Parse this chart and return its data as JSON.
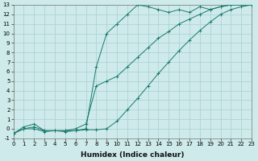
{
  "xlabel": "Humidex (Indice chaleur)",
  "bg_color": "#ceeaea",
  "grid_color": "#aacfcf",
  "line_color": "#1a7a6e",
  "xlim": [
    0,
    23
  ],
  "ylim": [
    -1,
    13
  ],
  "xticks": [
    0,
    1,
    2,
    3,
    4,
    5,
    6,
    7,
    8,
    9,
    10,
    11,
    12,
    13,
    14,
    15,
    16,
    17,
    18,
    19,
    20,
    21,
    22,
    23
  ],
  "yticks": [
    -1,
    0,
    1,
    2,
    3,
    4,
    5,
    6,
    7,
    8,
    9,
    10,
    11,
    12,
    13
  ],
  "line1_x": [
    0,
    1,
    2,
    3,
    4,
    5,
    6,
    7,
    8,
    9,
    10,
    11,
    12,
    13,
    14,
    15,
    16,
    17,
    18,
    19,
    20,
    21,
    22,
    23
  ],
  "line1_y": [
    -0.5,
    0.2,
    0.5,
    -0.2,
    -0.2,
    -0.3,
    -0.2,
    0.0,
    6.5,
    10.0,
    11.0,
    12.0,
    13.0,
    12.8,
    12.5,
    12.2,
    12.5,
    12.2,
    12.8,
    12.5,
    12.8,
    13.0,
    13.0,
    13.0
  ],
  "line2_x": [
    0,
    1,
    2,
    3,
    4,
    5,
    6,
    7,
    8,
    9,
    10,
    11,
    12,
    13,
    14,
    15,
    16,
    17,
    18,
    19,
    20,
    21,
    22,
    23
  ],
  "line2_y": [
    -0.5,
    0.0,
    0.2,
    -0.2,
    -0.2,
    -0.2,
    0.0,
    0.5,
    4.5,
    5.0,
    5.5,
    6.5,
    7.5,
    8.5,
    9.5,
    10.2,
    11.0,
    11.5,
    12.0,
    12.5,
    12.8,
    13.0,
    13.0,
    13.0
  ],
  "line3_x": [
    0,
    1,
    2,
    3,
    4,
    5,
    6,
    7,
    8,
    9,
    10,
    11,
    12,
    13,
    14,
    15,
    16,
    17,
    18,
    19,
    20,
    21,
    22,
    23
  ],
  "line3_y": [
    -0.5,
    0.0,
    0.0,
    -0.3,
    -0.2,
    -0.2,
    -0.2,
    -0.1,
    -0.1,
    0.0,
    0.8,
    2.0,
    3.2,
    4.5,
    5.8,
    7.0,
    8.2,
    9.3,
    10.3,
    11.2,
    12.0,
    12.5,
    12.8,
    13.0
  ],
  "marker": "+",
  "markersize": 3,
  "linewidth": 0.7,
  "tick_fontsize": 5.0,
  "xlabel_fontsize": 6.5
}
